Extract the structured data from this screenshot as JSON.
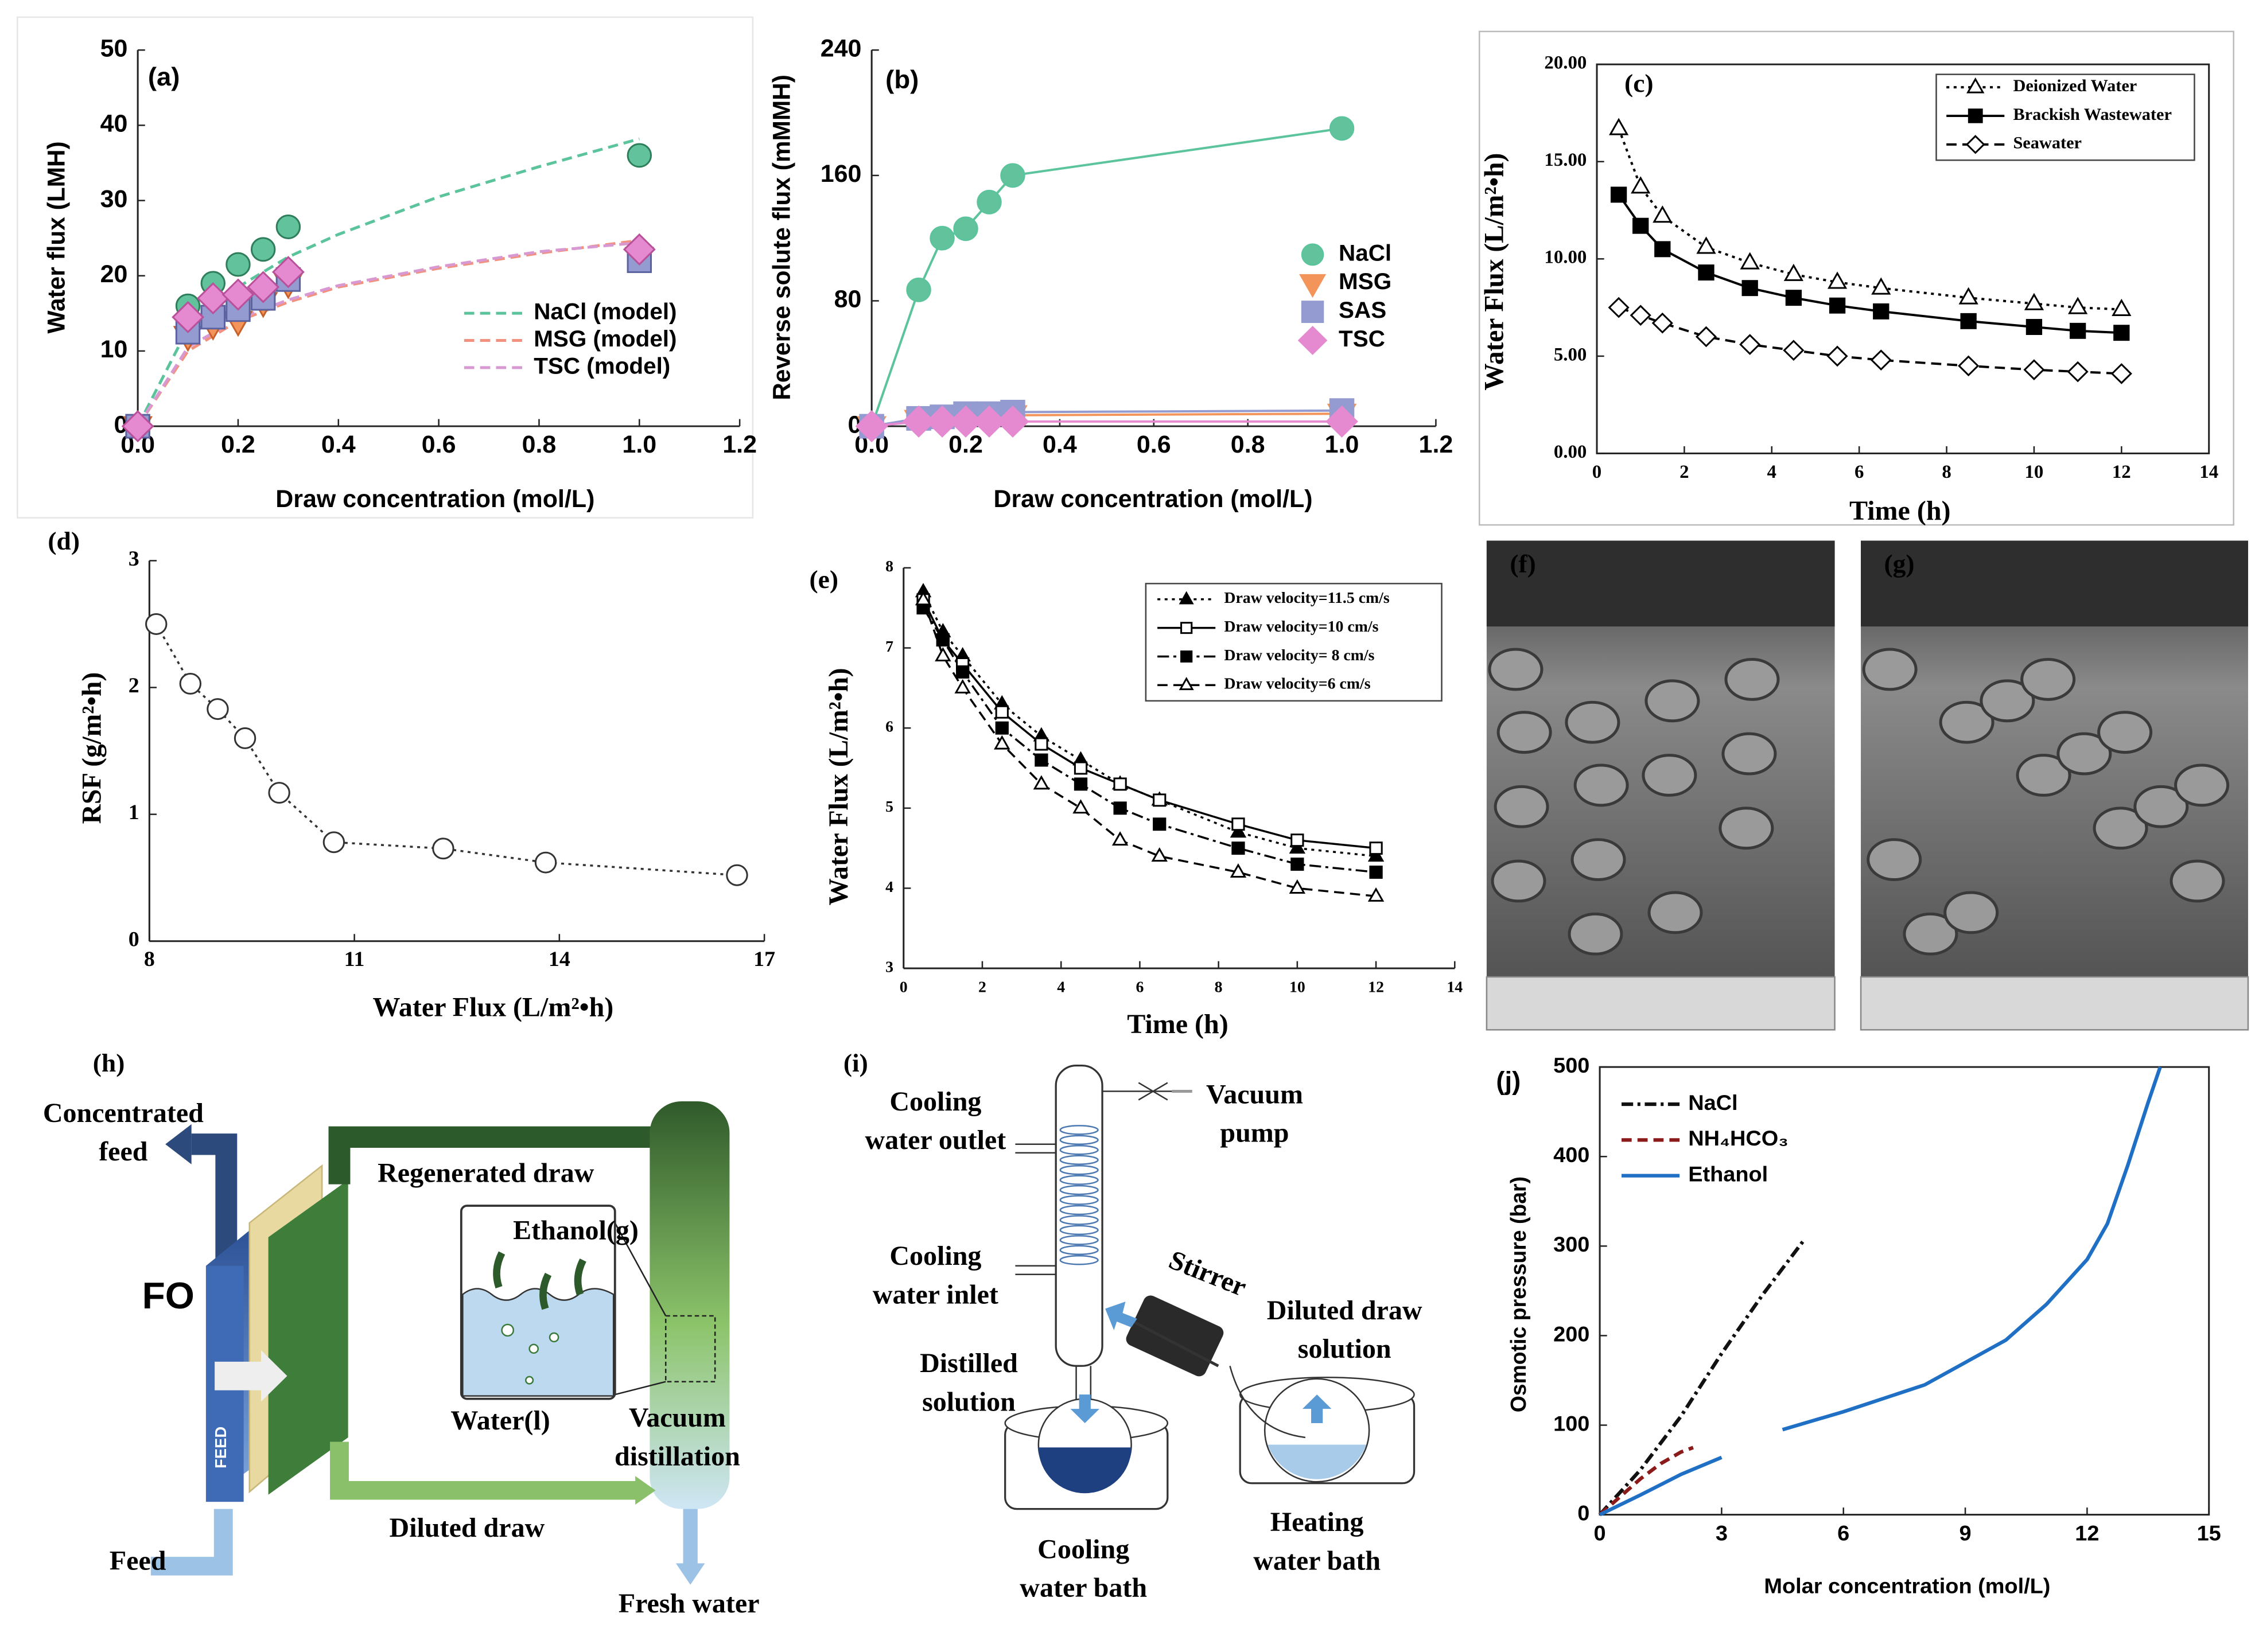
{
  "chart_data": [
    {
      "type": "line",
      "panel_label": "(a)",
      "xlabel": "Draw concentration (mol/L)",
      "ylabel": "Water flux (LMH)",
      "xlim": [
        0,
        1.2
      ],
      "ylim": [
        0,
        50
      ],
      "xticks": [
        {
          "value": 0,
          "label": "0.0"
        },
        0.2,
        0.4,
        0.6,
        0.8,
        {
          "value": 1,
          "label": "1.0"
        },
        1.2
      ],
      "yticks": [
        0,
        10,
        20,
        30,
        40,
        50
      ],
      "grid": false,
      "legend": "lower right",
      "series": [
        {
          "name": "NaCl (model)",
          "color": "#5cc49c",
          "line": "dashed",
          "marker": "none",
          "x": [
            0,
            0.1,
            0.2,
            0.3,
            0.4,
            0.6,
            0.8,
            1.0
          ],
          "values": [
            0,
            13,
            18.5,
            22.5,
            25.5,
            30.5,
            34.5,
            38.2
          ]
        },
        {
          "name": "MSG (model)",
          "color": "#f2917e",
          "line": "dashed",
          "marker": "none",
          "x": [
            0,
            0.1,
            0.2,
            0.3,
            0.4,
            0.6,
            0.8,
            1.0
          ],
          "values": [
            0,
            10,
            14,
            16.5,
            18.5,
            21,
            23,
            24.7
          ]
        },
        {
          "name": "TSC (model)",
          "color": "#d898d2",
          "line": "dashed",
          "marker": "none",
          "x": [
            0,
            0.1,
            0.2,
            0.3,
            0.4,
            0.6,
            0.8,
            1.0
          ],
          "values": [
            0,
            10.5,
            14.3,
            16.8,
            18.7,
            21.2,
            23.2,
            24.4
          ]
        },
        {
          "color": "#2e7d5b",
          "marker_fill": "#62c29c",
          "line": "none",
          "marker": "circle",
          "x": [
            0,
            0.1,
            0.15,
            0.2,
            0.25,
            0.3,
            1.0
          ],
          "values": [
            0,
            16,
            19,
            21.5,
            23.5,
            26.5,
            36
          ]
        },
        {
          "color": "#c8602a",
          "marker_fill": "#f3955a",
          "line": "none",
          "marker": "triangle-down",
          "x": [
            0,
            0.1,
            0.15,
            0.2,
            0.25,
            0.3,
            1.0
          ],
          "values": [
            0,
            12,
            13.5,
            14,
            16.5,
            19,
            22.5
          ]
        },
        {
          "color": "#5b62a0",
          "marker_fill": "#939bd0",
          "line": "none",
          "marker": "square",
          "x": [
            0,
            0.1,
            0.15,
            0.2,
            0.25,
            0.3,
            1.0
          ],
          "values": [
            0,
            12.5,
            14.5,
            15.5,
            17,
            19.5,
            22
          ]
        },
        {
          "color": "#b8509a",
          "marker_fill": "#e58ad0",
          "line": "none",
          "marker": "diamond",
          "x": [
            0,
            0.1,
            0.15,
            0.2,
            0.25,
            0.3,
            1.0
          ],
          "values": [
            0,
            14.5,
            17,
            17.5,
            18.5,
            20.5,
            23.5
          ]
        }
      ]
    },
    {
      "type": "line",
      "panel_label": "(b)",
      "xlabel": "Draw concentration (mol/L)",
      "ylabel": "Reverse solute flux (mMMH)",
      "xlim": [
        0,
        1.2
      ],
      "ylim": [
        0,
        240
      ],
      "xticks": [
        {
          "value": 0,
          "label": "0.0"
        },
        0.2,
        0.4,
        0.6,
        0.8,
        {
          "value": 1,
          "label": "1.0"
        },
        1.2
      ],
      "yticks": [
        0,
        80,
        160,
        240
      ],
      "grid": false,
      "legend": "center right",
      "series": [
        {
          "name": "NaCl",
          "color": "#5cc49c",
          "marker_fill": "#62c29c",
          "line": "solid",
          "marker": "circle",
          "x": [
            0,
            0.1,
            0.15,
            0.2,
            0.25,
            0.3,
            1.0
          ],
          "values": [
            0,
            87,
            120,
            126,
            143,
            160,
            190
          ]
        },
        {
          "name": "MSG",
          "color": "#f3955a",
          "marker_fill": "#f3955a",
          "line": "solid",
          "marker": "triangle-down",
          "x": [
            0,
            0.1,
            0.15,
            0.2,
            0.25,
            0.3,
            1.0
          ],
          "values": [
            0,
            4,
            5,
            6,
            6,
            7,
            8
          ]
        },
        {
          "name": "SAS",
          "color": "#939bd0",
          "marker_fill": "#939bd0",
          "line": "solid",
          "marker": "square",
          "x": [
            0,
            0.1,
            0.15,
            0.2,
            0.25,
            0.3,
            1.0
          ],
          "values": [
            0,
            5,
            6,
            8,
            8,
            9,
            10
          ]
        },
        {
          "name": "TSC",
          "color": "#e58ad0",
          "marker_fill": "#e58ad0",
          "line": "solid",
          "marker": "diamond",
          "x": [
            0,
            0.1,
            0.15,
            0.2,
            0.25,
            0.3,
            1.0
          ],
          "values": [
            0,
            3,
            3,
            3,
            3,
            3,
            3
          ]
        }
      ]
    },
    {
      "type": "line",
      "panel_label": "(c)",
      "xlabel": "Time (h)",
      "ylabel": "Water Flux (L/m²•h)",
      "xlim": [
        0,
        14
      ],
      "ylim": [
        0,
        20
      ],
      "xticks": [
        0,
        2,
        4,
        6,
        8,
        10,
        12,
        14
      ],
      "yticks": [
        {
          "value": 0,
          "label": "0.00"
        },
        {
          "value": 5,
          "label": "5.00"
        },
        {
          "value": 10,
          "label": "10.00"
        },
        {
          "value": 15,
          "label": "15.00"
        },
        {
          "value": 20,
          "label": "20.00"
        }
      ],
      "grid": false,
      "legend": "upper right",
      "series": [
        {
          "name": "Deionized Water",
          "color": "#000000",
          "marker_fill": "#ffffff",
          "line": "dotted",
          "marker": "triangle",
          "x": [
            0.5,
            1,
            1.5,
            2.5,
            3.5,
            4.5,
            5.5,
            6.5,
            8.5,
            10,
            11,
            12
          ],
          "values": [
            16.7,
            13.7,
            12.2,
            10.6,
            9.8,
            9.2,
            8.8,
            8.5,
            8.0,
            7.7,
            7.5,
            7.4
          ]
        },
        {
          "name": "Brackish Wastewater",
          "color": "#000000",
          "marker_fill": "#000000",
          "line": "solid",
          "marker": "square",
          "x": [
            0.5,
            1,
            1.5,
            2.5,
            3.5,
            4.5,
            5.5,
            6.5,
            8.5,
            10,
            11,
            12
          ],
          "values": [
            13.3,
            11.7,
            10.5,
            9.3,
            8.5,
            8.0,
            7.6,
            7.3,
            6.8,
            6.5,
            6.3,
            6.2
          ]
        },
        {
          "name": "Seawater",
          "color": "#000000",
          "marker_fill": "#ffffff",
          "line": "dashed",
          "marker": "diamond",
          "x": [
            0.5,
            1,
            1.5,
            2.5,
            3.5,
            4.5,
            5.5,
            6.5,
            8.5,
            10,
            11,
            12
          ],
          "values": [
            7.5,
            7.1,
            6.7,
            6.0,
            5.6,
            5.3,
            5.0,
            4.8,
            4.5,
            4.3,
            4.2,
            4.1
          ]
        }
      ]
    },
    {
      "type": "line",
      "panel_label": "(d)",
      "xlabel": "Water Flux (L/m²•h)",
      "ylabel": "RSF (g/m²•h)",
      "xlim": [
        8,
        17
      ],
      "ylim": [
        0,
        3
      ],
      "xticks": [
        8,
        11,
        14,
        17
      ],
      "yticks": [
        0,
        1,
        2,
        3
      ],
      "grid": false,
      "series": [
        {
          "color": "#333333",
          "marker_fill": "#ffffff",
          "line": "dotted",
          "marker": "circle",
          "x": [
            8.1,
            8.6,
            9.0,
            9.4,
            9.9,
            10.7,
            12.3,
            13.8,
            16.6
          ],
          "values": [
            2.5,
            2.03,
            1.83,
            1.6,
            1.17,
            0.78,
            0.73,
            0.62,
            0.52
          ]
        }
      ]
    },
    {
      "type": "line",
      "panel_label": "(e)",
      "xlabel": "Time (h)",
      "ylabel": "Water Flux (L/m²•h)",
      "xlim": [
        0,
        14
      ],
      "ylim": [
        3,
        8
      ],
      "xticks": [
        0,
        2,
        4,
        6,
        8,
        10,
        12,
        14
      ],
      "yticks": [
        3,
        4,
        5,
        6,
        7,
        8
      ],
      "grid": false,
      "legend": "upper right",
      "series": [
        {
          "name": "Draw velocity=11.5 cm/s",
          "color": "#000000",
          "marker_fill": "#000000",
          "line": "dotted",
          "marker": "triangle",
          "x": [
            0.5,
            1,
            1.5,
            2.5,
            3.5,
            4.5,
            5.5,
            6.5,
            8.5,
            10,
            12
          ],
          "values": [
            7.7,
            7.2,
            6.9,
            6.3,
            5.9,
            5.6,
            5.3,
            5.1,
            4.7,
            4.5,
            4.4
          ]
        },
        {
          "name": "Draw velocity=10 cm/s",
          "color": "#000000",
          "marker_fill": "#ffffff",
          "line": "solid",
          "marker": "square",
          "x": [
            0.5,
            1,
            1.5,
            2.5,
            3.5,
            4.5,
            5.5,
            6.5,
            8.5,
            10,
            12
          ],
          "values": [
            7.6,
            7.1,
            6.8,
            6.2,
            5.8,
            5.5,
            5.3,
            5.1,
            4.8,
            4.6,
            4.5
          ]
        },
        {
          "name": "Draw velocity= 8 cm/s",
          "color": "#000000",
          "marker_fill": "#000000",
          "line": "dashdot",
          "marker": "square",
          "x": [
            0.5,
            1,
            1.5,
            2.5,
            3.5,
            4.5,
            5.5,
            6.5,
            8.5,
            10,
            12
          ],
          "values": [
            7.5,
            7.1,
            6.7,
            6.0,
            5.6,
            5.3,
            5.0,
            4.8,
            4.5,
            4.3,
            4.2
          ]
        },
        {
          "name": "Draw velocity=6 cm/s",
          "color": "#000000",
          "marker_fill": "#ffffff",
          "line": "dashed",
          "marker": "triangle",
          "x": [
            0.5,
            1,
            1.5,
            2.5,
            3.5,
            4.5,
            5.5,
            6.5,
            8.5,
            10,
            12
          ],
          "values": [
            7.6,
            6.9,
            6.5,
            5.8,
            5.3,
            5.0,
            4.6,
            4.4,
            4.2,
            4.0,
            3.9
          ]
        }
      ]
    },
    {
      "type": "line",
      "panel_label": "(j)",
      "xlabel": "Molar concentration (mol/L)",
      "ylabel": "Osmotic pressure (bar)",
      "xlim": [
        0,
        15
      ],
      "ylim": [
        0,
        500
      ],
      "xticks": [
        0,
        3,
        6,
        9,
        12,
        15
      ],
      "yticks": [
        0,
        100,
        200,
        300,
        400,
        500
      ],
      "grid": false,
      "legend": "upper left",
      "series": [
        {
          "name": "NaCl",
          "color": "#111111",
          "line": "dashdot",
          "marker": "none",
          "x": [
            0,
            1,
            2,
            3,
            4,
            5
          ],
          "values": [
            0,
            50,
            110,
            180,
            245,
            305
          ]
        },
        {
          "name": "NH₄HCO₃",
          "color": "#8b1a1a",
          "line": "dashed",
          "marker": "none",
          "x": [
            0,
            0.5,
            1,
            1.5,
            2,
            2.3
          ],
          "values": [
            0,
            20,
            40,
            57,
            70,
            75
          ]
        },
        {
          "name": "Ethanol",
          "color": "#1f6fc5",
          "line": "solid",
          "marker": "none",
          "x": [
            0,
            1,
            2,
            3,
            4,
            4.5,
            6,
            8,
            10,
            11,
            12,
            12.5,
            13,
            13.5,
            13.8
          ],
          "values": [
            0,
            22,
            45,
            64,
            null,
            95,
            115,
            145,
            195,
            235,
            285,
            325,
            390,
            460,
            500
          ]
        }
      ]
    }
  ],
  "figure": {
    "f": "(f)",
    "g": "(g)",
    "h": {
      "panel": "(h)",
      "texts": [
        [
          "Concentrated",
          "feed"
        ],
        [
          "Regenerated draw"
        ],
        [
          "Ethanol(g)"
        ],
        [
          "FO"
        ],
        [
          "FEED"
        ],
        [
          "Water(l)"
        ],
        [
          "Vacuum",
          "distillation"
        ],
        [
          "Diluted draw"
        ],
        [
          "Feed"
        ],
        [
          "Fresh water"
        ]
      ]
    },
    "i": {
      "panel": "(i)",
      "texts": [
        [
          "Cooling",
          "water outlet"
        ],
        [
          "Vacuum",
          "pump"
        ],
        [
          "Cooling",
          "water inlet"
        ],
        [
          "Stirrer"
        ],
        [
          "Diluted draw",
          "solution"
        ],
        [
          "Distilled",
          "solution"
        ],
        [
          "Heating",
          "water bath"
        ],
        [
          "Cooling",
          "water bath"
        ]
      ]
    }
  }
}
